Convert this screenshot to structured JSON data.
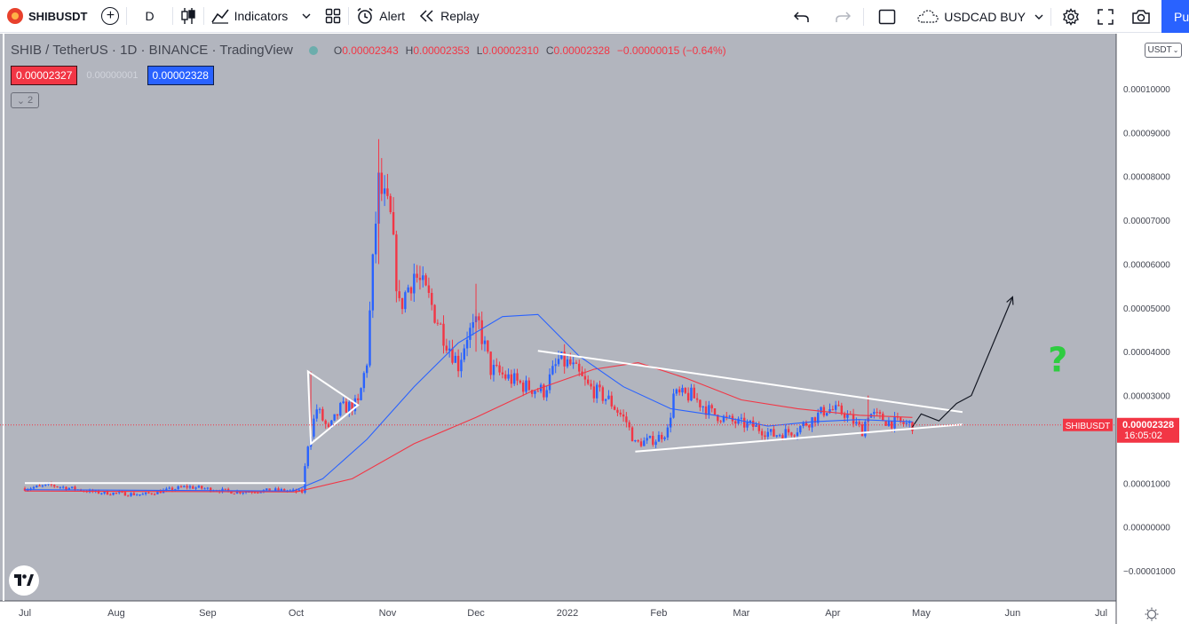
{
  "toolbar": {
    "symbol": "SHIBUSDT",
    "interval": "D",
    "indicators_label": "Indicators",
    "alert_label": "Alert",
    "replay_label": "Replay",
    "layout_name": "USDCAD BUY",
    "publish_label": "Pu"
  },
  "legend": {
    "title": "SHIB / TetherUS · 1D · BINANCE · TradingView",
    "open_label": "O",
    "open": "0.00002343",
    "high_label": "H",
    "high": "0.00002353",
    "low_label": "L",
    "low": "0.00002310",
    "close_label": "C",
    "close": "0.00002328",
    "change": "−0.00000015 (−0.64%)"
  },
  "bidask": {
    "bid": "0.00002327",
    "spread": "0.00000001",
    "ask": "0.00002328"
  },
  "collapse_count": "2",
  "price_axis": {
    "currency": "USDT",
    "ticks": [
      "0.00010000",
      "0.00009000",
      "0.00008000",
      "0.00007000",
      "0.00006000",
      "0.00005000",
      "0.00004000",
      "0.00003000",
      "0.00001000",
      "0.00000000",
      "−0.00001000"
    ],
    "last_label": "SHIBUSDT",
    "last_price": "0.00002328",
    "countdown": "16:05:02"
  },
  "time_axis": {
    "ticks": [
      "Jul",
      "Aug",
      "Sep",
      "Oct",
      "Nov",
      "Dec",
      "2022",
      "Feb",
      "Mar",
      "Apr",
      "May",
      "Jun",
      "Jul"
    ]
  },
  "annotation": {
    "text": "?"
  },
  "colors": {
    "background": "#b2b5be",
    "up": "#2962ff",
    "down": "#f23645",
    "ma_fast": "#2962ff",
    "ma_slow": "#f23645",
    "trendline": "#ffffff",
    "question": "#2ecc40"
  },
  "chart_data": {
    "type": "candlestick",
    "x_range": [
      "2021-07-01",
      "2022-07-01"
    ],
    "y_range": [
      -1.1e-05,
      0.0001
    ],
    "close_path": [
      [
        "2021-07-01",
        8.8e-06
      ],
      [
        "2021-07-10",
        9.5e-06
      ],
      [
        "2021-07-25",
        7.9e-06
      ],
      [
        "2021-08-10",
        7.4e-06
      ],
      [
        "2021-08-25",
        9.2e-06
      ],
      [
        "2021-09-10",
        8e-06
      ],
      [
        "2021-09-25",
        8.4e-06
      ],
      [
        "2021-10-03",
        8e-06
      ],
      [
        "2021-10-05",
        1.9e-05
      ],
      [
        "2021-10-08",
        2.7e-05
      ],
      [
        "2021-10-12",
        2.2e-05
      ],
      [
        "2021-10-16",
        2.7e-05
      ],
      [
        "2021-10-22",
        2.8e-05
      ],
      [
        "2021-10-25",
        3.8e-05
      ],
      [
        "2021-10-28",
        7e-05
      ],
      [
        "2021-10-29",
        7.8e-05
      ],
      [
        "2021-11-02",
        7e-05
      ],
      [
        "2021-11-05",
        5e-05
      ],
      [
        "2021-11-10",
        5.8e-05
      ],
      [
        "2021-11-15",
        5.2e-05
      ],
      [
        "2021-11-20",
        4.4e-05
      ],
      [
        "2021-11-25",
        3.7e-05
      ],
      [
        "2021-11-28",
        4.4e-05
      ],
      [
        "2021-12-02",
        4.6e-05
      ],
      [
        "2021-12-06",
        3.6e-05
      ],
      [
        "2021-12-12",
        3.4e-05
      ],
      [
        "2021-12-18",
        3.2e-05
      ],
      [
        "2021-12-24",
        3.1e-05
      ],
      [
        "2021-12-29",
        3.8e-05
      ],
      [
        "2022-01-02",
        3.7e-05
      ],
      [
        "2022-01-08",
        3.2e-05
      ],
      [
        "2022-01-15",
        2.9e-05
      ],
      [
        "2022-01-21",
        2.4e-05
      ],
      [
        "2022-01-24",
        1.9e-05
      ],
      [
        "2022-01-31",
        2e-05
      ],
      [
        "2022-02-04",
        2.2e-05
      ],
      [
        "2022-02-06",
        3e-05
      ],
      [
        "2022-02-12",
        3e-05
      ],
      [
        "2022-02-19",
        2.6e-05
      ],
      [
        "2022-02-26",
        2.4e-05
      ],
      [
        "2022-03-05",
        2.3e-05
      ],
      [
        "2022-03-12",
        2.1e-05
      ],
      [
        "2022-03-19",
        2.2e-05
      ],
      [
        "2022-03-26",
        2.5e-05
      ],
      [
        "2022-03-30",
        2.7e-05
      ],
      [
        "2022-04-05",
        2.6e-05
      ],
      [
        "2022-04-11",
        2.2e-05
      ],
      [
        "2022-04-13",
        2.6e-05
      ],
      [
        "2022-04-20",
        2.4e-05
      ],
      [
        "2022-04-28",
        2.328e-05
      ]
    ],
    "ma_fast": [
      [
        "2021-07-01",
        8.5e-06
      ],
      [
        "2021-09-30",
        8.2e-06
      ],
      [
        "2021-10-10",
        1.1e-05
      ],
      [
        "2021-10-25",
        2e-05
      ],
      [
        "2021-11-10",
        3.2e-05
      ],
      [
        "2021-11-25",
        4.2e-05
      ],
      [
        "2021-12-10",
        4.8e-05
      ],
      [
        "2021-12-22",
        4.85e-05
      ],
      [
        "2022-01-05",
        3.9e-05
      ],
      [
        "2022-01-20",
        3.2e-05
      ],
      [
        "2022-02-05",
        2.7e-05
      ],
      [
        "2022-02-20",
        2.55e-05
      ],
      [
        "2022-03-10",
        2.3e-05
      ],
      [
        "2022-03-25",
        2.4e-05
      ],
      [
        "2022-04-10",
        2.45e-05
      ],
      [
        "2022-04-28",
        2.4e-05
      ]
    ],
    "ma_slow": [
      [
        "2021-07-01",
        8.2e-06
      ],
      [
        "2021-10-01",
        8e-06
      ],
      [
        "2021-10-20",
        1.1e-05
      ],
      [
        "2021-11-10",
        1.9e-05
      ],
      [
        "2021-12-01",
        2.5e-05
      ],
      [
        "2021-12-20",
        3.1e-05
      ],
      [
        "2022-01-10",
        3.6e-05
      ],
      [
        "2022-01-25",
        3.75e-05
      ],
      [
        "2022-02-10",
        3.4e-05
      ],
      [
        "2022-03-01",
        2.9e-05
      ],
      [
        "2022-03-20",
        2.7e-05
      ],
      [
        "2022-04-10",
        2.55e-05
      ],
      [
        "2022-04-28",
        2.5e-05
      ]
    ],
    "drawings": [
      {
        "kind": "horizontal",
        "points": [
          [
            "2021-07-01",
            1e-05
          ],
          [
            "2021-10-04",
            1e-05
          ]
        ]
      },
      {
        "kind": "triangle",
        "points": [
          [
            "2021-10-05",
            3.55e-05
          ],
          [
            "2021-10-22",
            2.78e-05
          ],
          [
            "2021-10-06",
            1.9e-05
          ]
        ]
      },
      {
        "kind": "upper-trend",
        "points": [
          [
            "2021-12-22",
            4.02e-05
          ],
          [
            "2022-05-15",
            2.62e-05
          ]
        ]
      },
      {
        "kind": "lower-trend",
        "points": [
          [
            "2022-01-24",
            1.72e-05
          ],
          [
            "2022-05-15",
            2.34e-05
          ]
        ]
      },
      {
        "kind": "projection",
        "points": [
          [
            "2022-04-28",
            2.28e-05
          ],
          [
            "2022-05-01",
            2.58e-05
          ],
          [
            "2022-05-07",
            2.42e-05
          ],
          [
            "2022-05-13",
            2.82e-05
          ],
          [
            "2022-05-18",
            3e-05
          ],
          [
            "2022-06-01",
            5.25e-05
          ]
        ]
      }
    ],
    "last_price": 2.328e-05
  }
}
